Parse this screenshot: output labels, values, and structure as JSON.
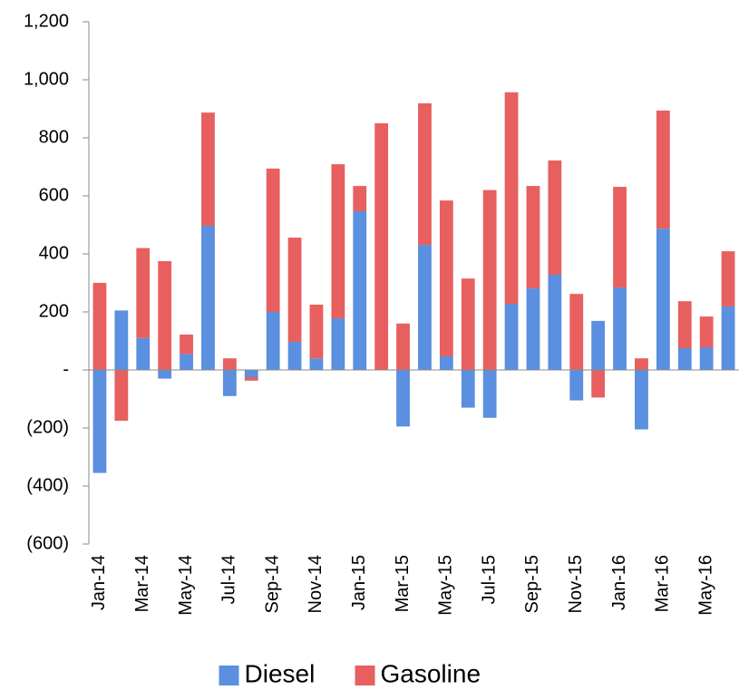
{
  "chart_data": {
    "type": "bar",
    "stacked": true,
    "categories": [
      "Jan-14",
      null,
      "Mar-14",
      null,
      "May-14",
      null,
      "Jul-14",
      null,
      "Sep-14",
      null,
      "Nov-14",
      null,
      "Jan-15",
      null,
      "Mar-15",
      null,
      "May-15",
      null,
      "Jul-15",
      null,
      "Sep-15",
      null,
      "Nov-15",
      null,
      "Jan-16",
      null,
      "Mar-16",
      null,
      "May-16",
      null
    ],
    "series": [
      {
        "name": "Diesel",
        "color": "#5b8fdf",
        "values": [
          -355,
          205,
          110,
          -30,
          55,
          497,
          -90,
          -25,
          200,
          97,
          40,
          178,
          547,
          0,
          -195,
          431,
          47,
          -130,
          -165,
          228,
          281,
          328,
          -105,
          169,
          284,
          -205,
          487,
          75,
          78,
          219
        ]
      },
      {
        "name": "Gasoline",
        "color": "#e7605f",
        "values": [
          300,
          -175,
          310,
          375,
          67,
          390,
          40,
          -12,
          494,
          359,
          185,
          531,
          87,
          850,
          160,
          488,
          537,
          315,
          620,
          729,
          353,
          394,
          262,
          -95,
          347,
          40,
          407,
          162,
          106,
          190
        ]
      }
    ],
    "ylim": [
      -600,
      1200
    ],
    "yticks": [
      {
        "value": -600,
        "label": "(600)"
      },
      {
        "value": -400,
        "label": "(400)"
      },
      {
        "value": -200,
        "label": "(200)"
      },
      {
        "value": 0,
        "label": "-"
      },
      200,
      400,
      600,
      800,
      {
        "value": 1000,
        "label": "1,000"
      },
      {
        "value": 1200,
        "label": "1,200"
      }
    ],
    "grid": false,
    "legend": "bottom"
  }
}
